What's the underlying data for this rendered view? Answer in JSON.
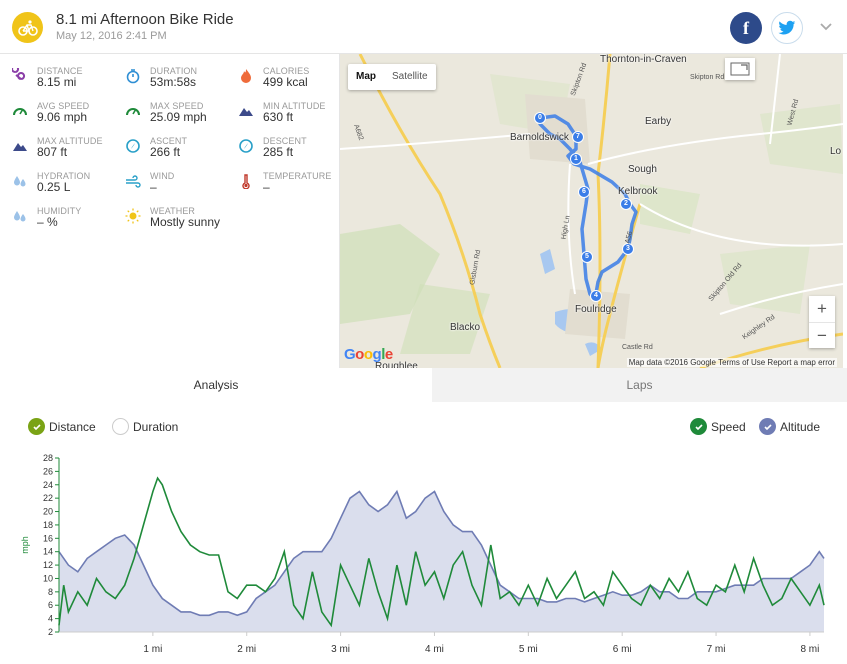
{
  "activity": {
    "title": "8.1 mi Afternoon Bike Ride",
    "date": "May 12, 2016 2:41 PM",
    "facebook_label": "f"
  },
  "colors": {
    "badge": "#f0c419",
    "facebook": "#2d4a8a",
    "twitter": "#1da1f2",
    "stat_icon": "#7d4ba0",
    "route": "#3a7de8",
    "speed": "#1f8a3a",
    "altitude_fill": "#d4d8ea",
    "altitude_line": "#6f7cb4",
    "distance_toggle": "#7aa315"
  },
  "stats": [
    {
      "label": "DISTANCE",
      "value": "8.15 mi",
      "icon": "distance-icon",
      "icon_color": "#8b3fa8"
    },
    {
      "label": "DURATION",
      "value": "53m:58s",
      "icon": "stopwatch-icon",
      "icon_color": "#2f8fd4"
    },
    {
      "label": "CALORIES",
      "value": "499 kcal",
      "icon": "flame-icon",
      "icon_color": "#ef6b3a"
    },
    {
      "label": "AVG SPEED",
      "value": "9.06 mph",
      "icon": "speedometer-icon",
      "icon_color": "#1f8a3a"
    },
    {
      "label": "MAX SPEED",
      "value": "25.09 mph",
      "icon": "speedometer-icon",
      "icon_color": "#1f8a3a"
    },
    {
      "label": "MIN ALTITUDE",
      "value": "630 ft",
      "icon": "mountain-icon",
      "icon_color": "#3c4a8a"
    },
    {
      "label": "MAX ALTITUDE",
      "value": "807 ft",
      "icon": "mountain-icon",
      "icon_color": "#3c4a8a"
    },
    {
      "label": "ASCENT",
      "value": "266 ft",
      "icon": "compass-icon",
      "icon_color": "#2aa0c8"
    },
    {
      "label": "DESCENT",
      "value": "285 ft",
      "icon": "compass-icon",
      "icon_color": "#2aa0c8"
    },
    {
      "label": "HYDRATION",
      "value": "0.25 L",
      "icon": "droplets-icon",
      "icon_color": "#9cc2e8"
    },
    {
      "label": "WIND",
      "value": "–",
      "icon": "wind-icon",
      "icon_color": "#2aa0c8"
    },
    {
      "label": "TEMPERATURE",
      "value": "–",
      "icon": "thermometer-icon",
      "icon_color": "#c0392b"
    },
    {
      "label": "HUMIDITY",
      "value": "– %",
      "icon": "droplets-icon",
      "icon_color": "#9cc2e8"
    },
    {
      "label": "WEATHER",
      "value": "Mostly sunny",
      "icon": "sun-icon",
      "icon_color": "#f0c419"
    }
  ],
  "map": {
    "map_label": "Map",
    "satellite_label": "Satellite",
    "zoom_in": "+",
    "zoom_out": "−",
    "google_logo": "Google",
    "attribution": "Map data ©2016 Google   Terms of Use   Report a map error",
    "places": [
      {
        "name": "Thornton-in-Craven"
      },
      {
        "name": "Barnoldswick"
      },
      {
        "name": "Earby"
      },
      {
        "name": "Sough"
      },
      {
        "name": "Kelbrook"
      },
      {
        "name": "Foulridge"
      },
      {
        "name": "Blacko"
      },
      {
        "name": "Lo"
      },
      {
        "name": "Roughlee"
      }
    ],
    "roads": [
      "A682",
      "Skipton Rd",
      "West Rd",
      "High Ln",
      "A56",
      "Gisburn Rd",
      "Skipton Old Rd",
      "Castle Rd",
      "Keighley Rd",
      "Skipton Rd"
    ],
    "route_markers": [
      "0",
      "1",
      "2",
      "3",
      "4",
      "5",
      "6",
      "7"
    ]
  },
  "tabs": {
    "analysis": "Analysis",
    "laps": "Laps"
  },
  "toggles": {
    "distance": "Distance",
    "duration": "Duration",
    "speed": "Speed",
    "altitude": "Altitude"
  },
  "chart_data": {
    "type": "line",
    "ylabel": "mph",
    "ylim": [
      2,
      28
    ],
    "yticks": [
      2,
      4,
      6,
      8,
      10,
      12,
      14,
      16,
      18,
      20,
      22,
      24,
      26,
      28
    ],
    "xlim": [
      0,
      8.15
    ],
    "xticks": [
      1,
      2,
      3,
      4,
      5,
      6,
      7,
      8
    ],
    "xticklabels": [
      "1 mi",
      "2 mi",
      "3 mi",
      "4 mi",
      "5 mi",
      "6 mi",
      "7 mi",
      "8 mi"
    ],
    "series": [
      {
        "name": "Speed",
        "kind": "line",
        "x": [
          0,
          0.05,
          0.1,
          0.2,
          0.3,
          0.4,
          0.5,
          0.6,
          0.7,
          0.8,
          0.9,
          1.0,
          1.05,
          1.1,
          1.2,
          1.3,
          1.4,
          1.5,
          1.6,
          1.7,
          1.8,
          1.9,
          2.0,
          2.1,
          2.2,
          2.3,
          2.4,
          2.5,
          2.6,
          2.7,
          2.8,
          2.9,
          3.0,
          3.1,
          3.2,
          3.3,
          3.4,
          3.5,
          3.6,
          3.7,
          3.8,
          3.9,
          4.0,
          4.1,
          4.2,
          4.3,
          4.4,
          4.5,
          4.6,
          4.7,
          4.8,
          4.9,
          5.0,
          5.1,
          5.2,
          5.3,
          5.4,
          5.5,
          5.6,
          5.7,
          5.8,
          5.9,
          6.0,
          6.1,
          6.2,
          6.3,
          6.4,
          6.5,
          6.6,
          6.7,
          6.8,
          6.9,
          7.0,
          7.1,
          7.2,
          7.3,
          7.4,
          7.5,
          7.6,
          7.7,
          7.8,
          7.9,
          8.0,
          8.1,
          8.15
        ],
        "values": [
          3,
          9,
          5,
          8,
          6,
          10,
          8,
          7,
          9,
          13,
          18,
          23,
          25,
          24,
          20,
          17,
          15,
          14,
          13.5,
          13.5,
          8,
          7,
          9,
          9,
          8,
          10,
          14,
          6,
          4,
          11,
          5,
          3,
          12,
          9,
          6,
          13,
          8,
          4,
          12,
          6,
          14,
          9,
          11,
          7,
          12,
          14,
          9,
          6,
          15,
          7,
          8,
          6,
          9,
          6,
          10,
          7,
          9,
          11,
          7,
          8,
          6,
          11,
          9,
          7,
          6,
          9,
          7,
          10,
          8,
          11,
          7,
          6,
          9,
          8,
          12,
          8,
          13,
          9,
          6,
          7,
          10,
          8,
          6,
          9,
          6
        ]
      },
      {
        "name": "Altitude",
        "kind": "area",
        "x": [
          0,
          0.1,
          0.2,
          0.3,
          0.4,
          0.5,
          0.6,
          0.7,
          0.8,
          0.9,
          1.0,
          1.1,
          1.2,
          1.3,
          1.4,
          1.5,
          1.6,
          1.7,
          1.8,
          1.9,
          2.0,
          2.1,
          2.2,
          2.3,
          2.4,
          2.5,
          2.6,
          2.7,
          2.8,
          2.9,
          3.0,
          3.1,
          3.2,
          3.3,
          3.4,
          3.5,
          3.6,
          3.7,
          3.8,
          3.9,
          4.0,
          4.1,
          4.2,
          4.3,
          4.4,
          4.5,
          4.6,
          4.7,
          4.8,
          4.9,
          5.0,
          5.1,
          5.2,
          5.3,
          5.4,
          5.5,
          5.6,
          5.7,
          5.8,
          5.9,
          6.0,
          6.1,
          6.2,
          6.3,
          6.4,
          6.5,
          6.6,
          6.7,
          6.8,
          6.9,
          7.0,
          7.1,
          7.2,
          7.3,
          7.4,
          7.5,
          7.6,
          7.7,
          7.8,
          7.9,
          8.0,
          8.1,
          8.15
        ],
        "values": [
          14,
          12,
          11,
          13,
          14,
          15,
          16,
          16.5,
          15,
          12,
          9,
          7,
          6,
          5,
          5,
          4.5,
          4.5,
          5,
          5,
          4.5,
          5,
          7,
          8,
          9,
          11,
          13,
          14,
          14,
          14,
          16,
          19,
          22,
          23,
          21,
          20,
          21,
          23,
          19,
          20,
          22,
          23,
          20,
          18,
          17,
          17,
          15,
          12,
          9,
          8,
          7,
          7,
          7,
          6.5,
          6.5,
          7,
          7,
          6.5,
          7,
          7.5,
          8,
          7.5,
          7.5,
          8,
          9,
          8,
          8,
          7,
          7,
          8,
          8,
          8,
          8.5,
          9,
          9,
          9,
          10,
          10,
          10,
          10,
          11,
          12,
          14,
          13
        ]
      }
    ]
  }
}
